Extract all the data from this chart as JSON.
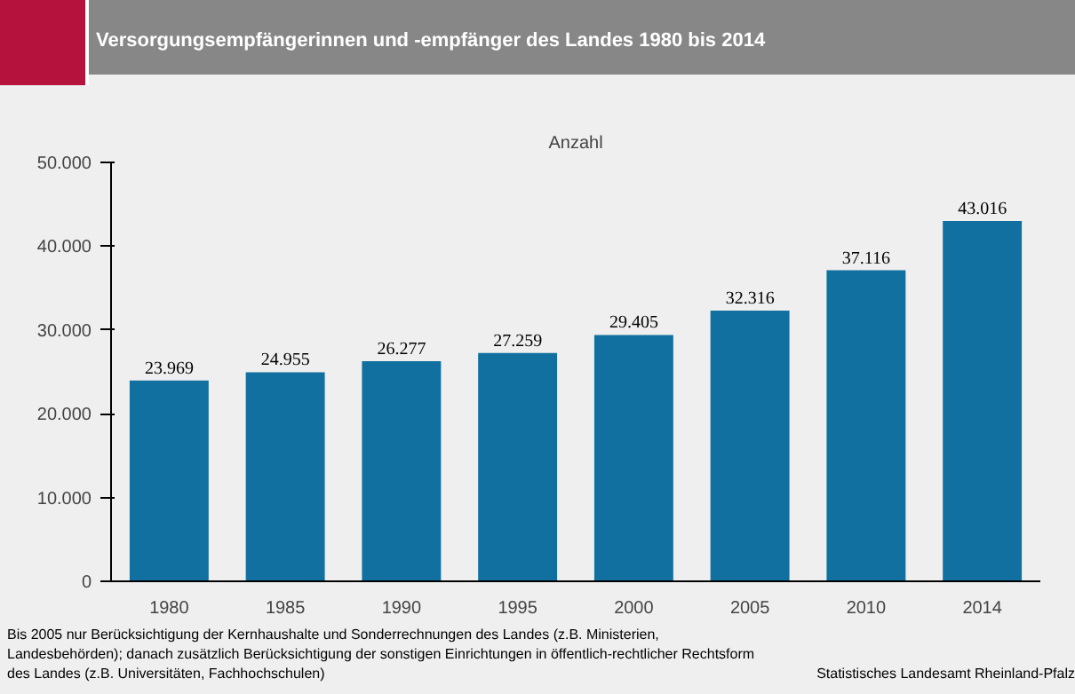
{
  "chart_data": {
    "type": "bar",
    "title": "Versorgungsempfängerinnen und -empfänger des Landes 1980 bis 2014",
    "ylabel": "Anzahl",
    "categories": [
      "1980",
      "1985",
      "1990",
      "1995",
      "2000",
      "2005",
      "2010",
      "2014"
    ],
    "values": [
      23969,
      24955,
      26277,
      27259,
      29405,
      32316,
      37116,
      43016
    ],
    "value_labels": [
      "23.969",
      "24.955",
      "26.277",
      "27.259",
      "29.405",
      "32.316",
      "37.116",
      "43.016"
    ],
    "color": "#1170a0",
    "ylim": [
      0,
      50000
    ],
    "yticks": [
      {
        "value": 0,
        "label": "0"
      },
      {
        "value": 10000,
        "label": "10.000"
      },
      {
        "value": 20000,
        "label": "20.000"
      },
      {
        "value": 30000,
        "label": "30.000"
      },
      {
        "value": 40000,
        "label": "40.000"
      },
      {
        "value": 50000,
        "label": "50.000"
      }
    ],
    "grid": false,
    "annotations": [
      "Bis 2005 nur Berücksichtigung der Kernhaushalte und Sonderrechnungen des Landes (z.B. Ministerien, Landesbehörden); danach zusätzlich Berücksichtigung der sonstigen Einrichtungen in öffentlich-rechtlicher Rechtsform des Landes (z.B. Universitäten, Fachhochschulen)",
      "Statistisches Landesamt Rheinland-Pfalz"
    ]
  }
}
